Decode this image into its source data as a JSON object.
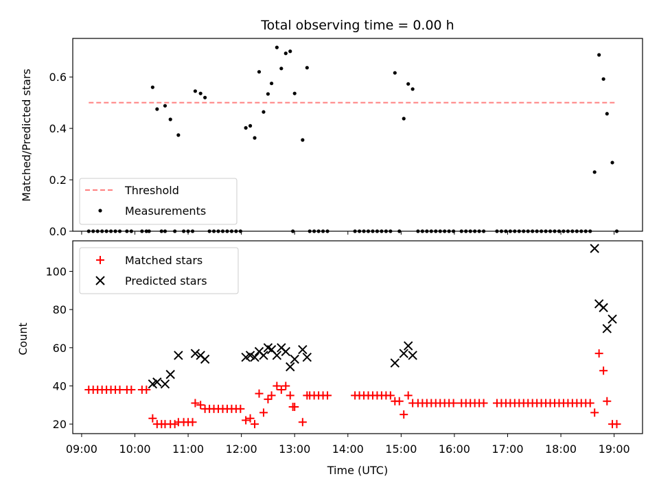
{
  "chart_data": {
    "title": "Total observing time = 0.00 h",
    "xlabel": "Time (UTC)",
    "x_ticks": [
      "09:00",
      "10:00",
      "11:00",
      "12:00",
      "13:00",
      "14:00",
      "15:00",
      "16:00",
      "17:00",
      "18:00",
      "19:00"
    ],
    "xlim": [
      "08:50",
      "19:32"
    ],
    "panels": [
      {
        "type": "scatter",
        "ylabel": "Matched/Predicted stars",
        "ylim": [
          0,
          0.75
        ],
        "y_ticks": [
          "0.0",
          "0.2",
          "0.4",
          "0.6"
        ],
        "y_tick_values": [
          0,
          0.2,
          0.4,
          0.6
        ],
        "legend": {
          "position": "lower-left",
          "entries": [
            "Threshold",
            "Measurements"
          ]
        },
        "series": [
          {
            "name": "Threshold",
            "kind": "dashed-line",
            "color": "#ff7f7f",
            "x": [
              "09:08",
              "19:03"
            ],
            "y": [
              0.5,
              0.5
            ]
          },
          {
            "name": "Measurements",
            "kind": "dot",
            "color": "#000000",
            "x": [
              "10:20",
              "10:25",
              "10:34",
              "10:40",
              "10:49",
              "11:08",
              "11:14",
              "11:19",
              "12:05",
              "12:10",
              "12:15",
              "12:20",
              "12:25",
              "12:30",
              "12:34",
              "12:40",
              "12:45",
              "12:50",
              "12:55",
              "13:00",
              "13:09",
              "13:14",
              "14:53",
              "15:03",
              "15:08",
              "15:13",
              "18:38",
              "18:43",
              "18:48",
              "18:52",
              "18:58"
            ],
            "y": [
              0.56,
              0.475,
              0.488,
              0.435,
              0.374,
              0.545,
              0.536,
              0.52,
              0.402,
              0.41,
              0.363,
              0.62,
              0.464,
              0.534,
              0.575,
              0.715,
              0.633,
              0.692,
              0.7,
              0.536,
              0.355,
              0.636,
              0.616,
              0.438,
              0.573,
              0.553,
              0.23,
              0.686,
              0.592,
              0.457,
              0.267
            ],
            "zero_x": [
              "09:08",
              "09:13",
              "09:18",
              "09:23",
              "09:28",
              "09:33",
              "09:38",
              "09:43",
              "09:51",
              "09:56",
              "10:08",
              "10:13",
              "10:16",
              "10:30",
              "10:34",
              "10:45",
              "10:55",
              "11:00",
              "11:05",
              "11:24",
              "11:29",
              "11:34",
              "11:39",
              "11:44",
              "11:49",
              "11:54",
              "11:59",
              "12:58",
              "13:17",
              "13:22",
              "13:27",
              "13:32",
              "13:37",
              "14:08",
              "14:13",
              "14:18",
              "14:23",
              "14:28",
              "14:33",
              "14:38",
              "14:43",
              "14:48",
              "14:58",
              "15:19",
              "15:24",
              "15:29",
              "15:34",
              "15:39",
              "15:44",
              "15:49",
              "15:54",
              "15:59",
              "16:08",
              "16:13",
              "16:18",
              "16:23",
              "16:28",
              "16:33",
              "16:48",
              "16:53",
              "16:58",
              "17:03",
              "17:08",
              "17:13",
              "17:18",
              "17:23",
              "17:28",
              "17:33",
              "17:38",
              "17:43",
              "17:48",
              "17:53",
              "17:58",
              "18:03",
              "18:08",
              "18:13",
              "18:18",
              "18:23",
              "18:28",
              "18:33",
              "19:03"
            ]
          }
        ]
      },
      {
        "type": "scatter",
        "ylabel": "Count",
        "ylim": [
          15,
          116
        ],
        "y_ticks": [
          "20",
          "40",
          "60",
          "80",
          "100"
        ],
        "y_tick_values": [
          20,
          40,
          60,
          80,
          100
        ],
        "legend": {
          "position": "upper-left",
          "entries": [
            "Matched stars",
            "Predicted stars"
          ]
        },
        "series": [
          {
            "name": "Matched stars",
            "marker": "+",
            "color": "#ff0000",
            "x": [
              "09:08",
              "09:13",
              "09:18",
              "09:23",
              "09:28",
              "09:33",
              "09:38",
              "09:43",
              "09:51",
              "09:56",
              "10:08",
              "10:13",
              "10:20",
              "10:25",
              "10:30",
              "10:34",
              "10:40",
              "10:45",
              "10:49",
              "10:55",
              "11:00",
              "11:05",
              "11:08",
              "11:14",
              "11:19",
              "11:24",
              "11:29",
              "11:34",
              "11:39",
              "11:44",
              "11:49",
              "11:54",
              "11:59",
              "12:05",
              "12:10",
              "12:15",
              "12:20",
              "12:25",
              "12:30",
              "12:34",
              "12:40",
              "12:45",
              "12:50",
              "12:55",
              "12:58",
              "13:00",
              "13:09",
              "13:14",
              "13:17",
              "13:22",
              "13:27",
              "13:32",
              "13:37",
              "14:08",
              "14:13",
              "14:18",
              "14:23",
              "14:28",
              "14:33",
              "14:38",
              "14:43",
              "14:48",
              "14:53",
              "14:58",
              "15:03",
              "15:08",
              "15:13",
              "15:19",
              "15:24",
              "15:29",
              "15:34",
              "15:39",
              "15:44",
              "15:49",
              "15:54",
              "15:59",
              "16:08",
              "16:13",
              "16:18",
              "16:23",
              "16:28",
              "16:33",
              "16:48",
              "16:53",
              "16:58",
              "17:03",
              "17:08",
              "17:13",
              "17:18",
              "17:23",
              "17:28",
              "17:33",
              "17:38",
              "17:43",
              "17:48",
              "17:53",
              "17:58",
              "18:03",
              "18:08",
              "18:13",
              "18:18",
              "18:23",
              "18:28",
              "18:33",
              "18:38",
              "18:43",
              "18:48",
              "18:52",
              "18:58",
              "19:03"
            ],
            "y": [
              38,
              38,
              38,
              38,
              38,
              38,
              38,
              38,
              38,
              38,
              38,
              38,
              23,
              20,
              20,
              20,
              20,
              20,
              21,
              21,
              21,
              21,
              31,
              30,
              28,
              28,
              28,
              28,
              28,
              28,
              28,
              28,
              28,
              22,
              23,
              20,
              36,
              26,
              33,
              35,
              40,
              38,
              40,
              35,
              29,
              29,
              21,
              35,
              35,
              35,
              35,
              35,
              35,
              35,
              35,
              35,
              35,
              35,
              35,
              35,
              35,
              35,
              32,
              32,
              25,
              35,
              31,
              31,
              31,
              31,
              31,
              31,
              31,
              31,
              31,
              31,
              31,
              31,
              31,
              31,
              31,
              31,
              31,
              31,
              31,
              31,
              31,
              31,
              31,
              31,
              31,
              31,
              31,
              31,
              31,
              31,
              31,
              31,
              31,
              31,
              31,
              31,
              31,
              31,
              26,
              57,
              48,
              32,
              20,
              20
            ]
          },
          {
            "name": "Predicted stars",
            "marker": "x",
            "color": "#000000",
            "x": [
              "10:20",
              "10:25",
              "10:34",
              "10:40",
              "10:49",
              "11:08",
              "11:14",
              "11:19",
              "12:05",
              "12:10",
              "12:15",
              "12:20",
              "12:25",
              "12:30",
              "12:34",
              "12:40",
              "12:45",
              "12:50",
              "12:55",
              "13:00",
              "13:09",
              "13:14",
              "14:53",
              "15:03",
              "15:08",
              "15:13",
              "18:38",
              "18:43",
              "18:48",
              "18:52",
              "18:58"
            ],
            "y": [
              41,
              42,
              41,
              46,
              56,
              57,
              56,
              54,
              55,
              56,
              55,
              58,
              56,
              60,
              59,
              56,
              60,
              58,
              50,
              54,
              59,
              55,
              52,
              57,
              61,
              56,
              112,
              83,
              81,
              70,
              75
            ]
          }
        ]
      }
    ]
  }
}
